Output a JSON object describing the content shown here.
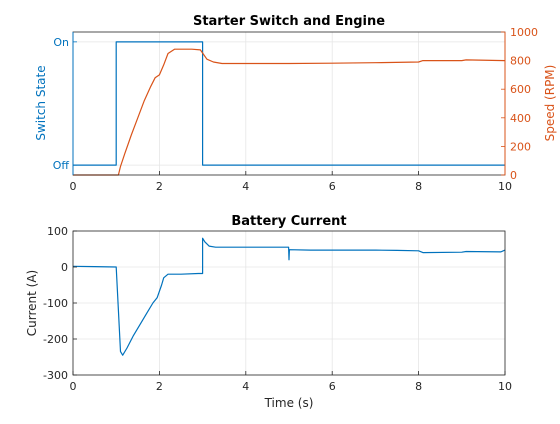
{
  "chart_data": [
    {
      "type": "line",
      "title": "Starter Switch and Engine",
      "xlabel": "",
      "xlim": [
        0,
        10
      ],
      "x_ticks": [
        "0",
        "2",
        "4",
        "6",
        "8",
        "10"
      ],
      "grid": true,
      "left_axis": {
        "label": "Switch State",
        "color": "#0072BD",
        "ylim": [
          -0.08,
          1.08
        ],
        "tick_values": [
          0,
          1
        ],
        "tick_labels": [
          "Off",
          "On"
        ]
      },
      "right_axis": {
        "label": "Speed (RPM)",
        "color": "#D95319",
        "ylim": [
          0,
          1000
        ],
        "tick_values": [
          0,
          200,
          400,
          600,
          800,
          1000
        ],
        "tick_labels": [
          "0",
          "200",
          "400",
          "600",
          "800",
          "1000"
        ]
      },
      "series": [
        {
          "axis": "left",
          "color": "#0072BD",
          "x": [
            0,
            1,
            1,
            3,
            3,
            10
          ],
          "y": [
            0,
            0,
            1,
            1,
            0,
            0
          ]
        },
        {
          "axis": "right",
          "color": "#D95319",
          "x": [
            0,
            1.05,
            1.1,
            1.2,
            1.35,
            1.5,
            1.65,
            1.8,
            1.9,
            2.0,
            2.1,
            2.2,
            2.35,
            2.5,
            2.75,
            2.95,
            3.1,
            3.25,
            3.45,
            4,
            5,
            6,
            7,
            8,
            8.1,
            9,
            9.1,
            10
          ],
          "y": [
            0,
            0,
            60,
            150,
            280,
            400,
            520,
            620,
            680,
            700,
            770,
            850,
            880,
            880,
            880,
            875,
            810,
            790,
            780,
            780,
            780,
            782,
            785,
            790,
            800,
            800,
            805,
            800
          ]
        }
      ]
    },
    {
      "type": "line",
      "title": "Battery Current",
      "xlabel": "Time (s)",
      "ylabel": "Current (A)",
      "xlim": [
        0,
        10
      ],
      "ylim": [
        -300,
        100
      ],
      "x_ticks": [
        "0",
        "2",
        "4",
        "6",
        "8",
        "10"
      ],
      "y_tick_values": [
        -300,
        -200,
        -100,
        0,
        100
      ],
      "y_ticks": [
        "-300",
        "-200",
        "-100",
        "0",
        "100"
      ],
      "grid": true,
      "series": [
        {
          "color": "#0072BD",
          "x": [
            0,
            0.5,
            1.0,
            1.05,
            1.1,
            1.15,
            1.25,
            1.4,
            1.55,
            1.7,
            1.85,
            1.95,
            2.05,
            2.1,
            2.2,
            2.5,
            2.9,
            3.0,
            3.0,
            3.05,
            3.15,
            3.3,
            4,
            4.99,
            5.0,
            5.01,
            5.5,
            7,
            7.5,
            8,
            8.1,
            9,
            9.1,
            9.9,
            10
          ],
          "y": [
            2,
            1,
            0,
            -120,
            -235,
            -245,
            -225,
            -190,
            -160,
            -130,
            -100,
            -85,
            -50,
            -30,
            -20,
            -20,
            -18,
            -18,
            80,
            70,
            58,
            55,
            55,
            55,
            20,
            48,
            47,
            47,
            46,
            45,
            40,
            41,
            43,
            42,
            47
          ]
        }
      ]
    }
  ]
}
